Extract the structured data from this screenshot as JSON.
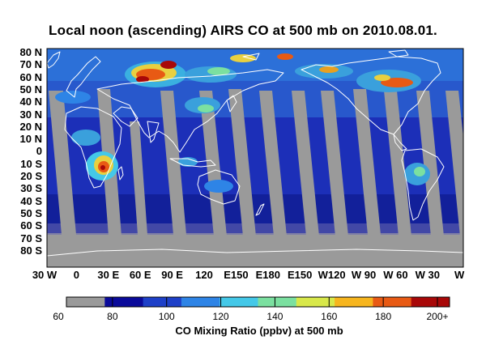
{
  "title": "Local  noon (ascending) AIRS CO at 500 mb on 2010.08.01.",
  "map": {
    "lat_labels": [
      "80  N",
      "70  N",
      "60  N",
      "50  N",
      "40  N",
      "30  N",
      "20  N",
      "10  N",
      "0",
      "10  S",
      "20  S",
      "30  S",
      "40  S",
      "50  S",
      "60  S",
      "70  S",
      "80  S"
    ],
    "lon_labels": [
      "30  W",
      "0",
      "30  E",
      "60  E",
      "90  E",
      "120",
      "E150",
      "E180",
      "E150",
      "W120",
      "W 90",
      "W 60",
      "W 30",
      "W"
    ],
    "no_data_color": "#9a9a9a",
    "coast_color": "#ffffff"
  },
  "colorbar": {
    "label": "CO Mixing Ratio (ppbv) at 500 mb",
    "ticks": [
      "60",
      "80",
      "100",
      "120",
      "140",
      "160",
      "180",
      "200+"
    ],
    "colors": [
      "#9a9a9a",
      "#0a0a9a",
      "#1e40c8",
      "#2e84e6",
      "#44c8e8",
      "#7be0a0",
      "#d8e84a",
      "#f6b51e",
      "#e85a14",
      "#a80808"
    ]
  }
}
